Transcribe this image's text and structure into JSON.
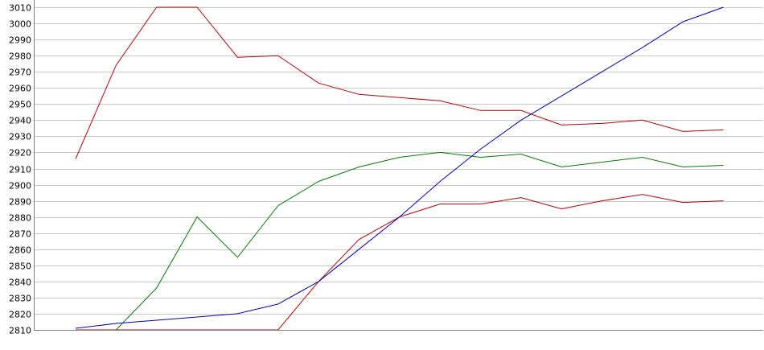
{
  "chart_data": {
    "type": "line",
    "title": "",
    "xlabel": "",
    "ylabel": "",
    "ylim": [
      2810,
      3010
    ],
    "ytick_step": 10,
    "grid": true,
    "legend": "none",
    "x": [
      1,
      2,
      3,
      4,
      5,
      6,
      7,
      8,
      9,
      10,
      11,
      12,
      13,
      14,
      15,
      16,
      17
    ],
    "series": [
      {
        "color": "#c00000",
        "values": [
          2916,
          2974,
          3010,
          3010,
          2979,
          2980,
          2963,
          2956,
          2954,
          2952,
          2946,
          2946,
          2937,
          2938,
          2940,
          2933,
          2934
        ]
      },
      {
        "color": "#008000",
        "values": [
          2810,
          2810,
          2836,
          2880,
          2855,
          2887,
          2902,
          2911,
          2917,
          2920,
          2917,
          2919,
          2911,
          2914,
          2917,
          2911,
          2912
        ]
      },
      {
        "color": "#c00000",
        "values": [
          2810,
          2810,
          2810,
          2810,
          2810,
          2810,
          2840,
          2866,
          2880,
          2888,
          2888,
          2892,
          2885,
          2890,
          2894,
          2889,
          2890
        ]
      },
      {
        "color": "#0000c0",
        "values": [
          2811,
          2814,
          2816,
          2818,
          2820,
          2826,
          2840,
          2860,
          2880,
          2902,
          2922,
          2940,
          2955,
          2970,
          2985,
          3001,
          3010
        ]
      }
    ]
  }
}
